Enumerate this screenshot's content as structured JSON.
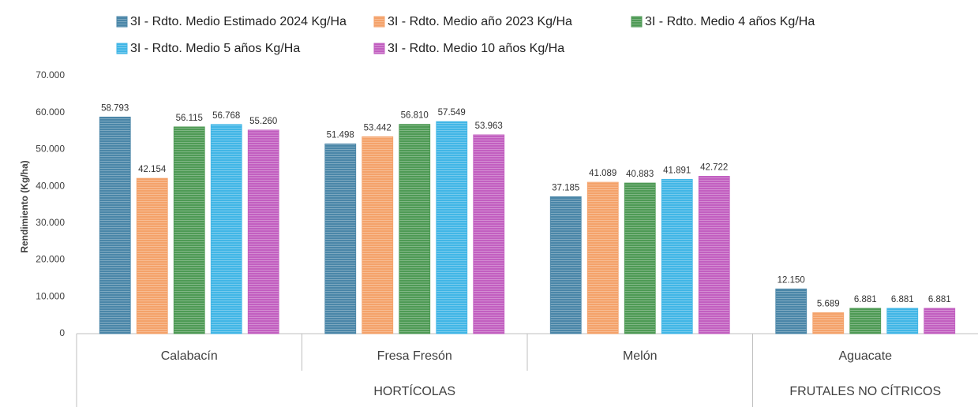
{
  "chart_data": {
    "type": "bar",
    "y_label": "Rendimiento (Kg/ha)",
    "groups": [
      {
        "name": "HORTÍCOLAS",
        "categories": [
          "Calabacín",
          "Fresa Fresón",
          "Melón"
        ]
      },
      {
        "name": "FRUTALES NO CÍTRICOS",
        "categories": [
          "Aguacate"
        ]
      }
    ],
    "series": [
      {
        "name": "3I - Rdto. Medio Estimado 2024 Kg/Ha",
        "color": "#4a86a8",
        "values": [
          58793,
          51498,
          37185,
          12150
        ],
        "value_labels": [
          "58.793",
          "51.498",
          "37.185",
          "12.150"
        ]
      },
      {
        "name": "3I - Rdto. Medio año 2023 Kg/Ha",
        "color": "#f4a26a",
        "values": [
          42154,
          53442,
          41089,
          5689
        ],
        "value_labels": [
          "42.154",
          "53.442",
          "41.089",
          "5.689"
        ]
      },
      {
        "name": "3I - Rdto. Medio 4 años Kg/Ha",
        "color": "#4e9a55",
        "values": [
          56115,
          56810,
          40883,
          6881
        ],
        "value_labels": [
          "56.115",
          "56.810",
          "40.883",
          "6.881"
        ]
      },
      {
        "name": "3I - Rdto. Medio 5 años Kg/Ha",
        "color": "#41b6e6",
        "values": [
          56768,
          57549,
          41891,
          6881
        ],
        "value_labels": [
          "56.768",
          "57.549",
          "41.891",
          "6.881"
        ]
      },
      {
        "name": "3I - Rdto. Medio 10 años Kg/Ha",
        "color": "#c25fc0",
        "values": [
          55260,
          53963,
          42722,
          6881
        ],
        "value_labels": [
          "55.260",
          "53.963",
          "42.722",
          "6.881"
        ]
      }
    ],
    "ylim": [
      0,
      70000
    ],
    "yticks": [
      0,
      {
        "value": 10000,
        "label": "10.000"
      },
      {
        "value": 20000,
        "label": "20.000"
      },
      {
        "value": 30000,
        "label": "30.000"
      },
      {
        "value": 40000,
        "label": "40.000"
      },
      {
        "value": 50000,
        "label": "50.000"
      },
      {
        "value": 60000,
        "label": "60.000"
      },
      {
        "value": 70000,
        "label": "70.000"
      }
    ],
    "legend": "top"
  }
}
